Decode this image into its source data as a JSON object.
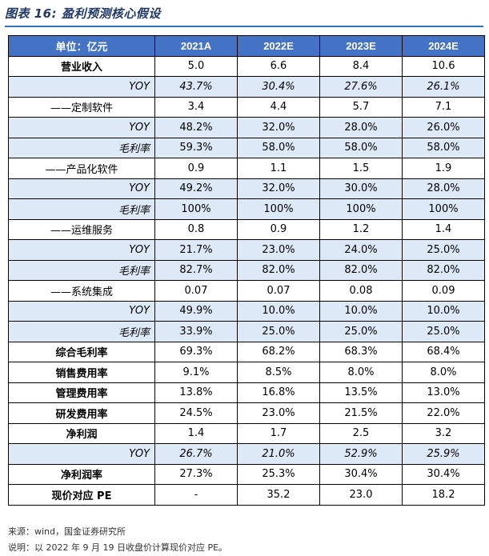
{
  "title": "图表 16: 盈利预测核心假设",
  "table": {
    "header": [
      "单位：亿元",
      "2021A",
      "2022E",
      "2023E",
      "2024E"
    ],
    "rows": [
      {
        "label": "营业收入",
        "style": "bold",
        "shade": false,
        "italic": false,
        "values": [
          "5.0",
          "6.6",
          "8.4",
          "10.6"
        ]
      },
      {
        "label": "YOY",
        "style": "sub",
        "shade": true,
        "italic": true,
        "values": [
          "43.7%",
          "30.4%",
          "27.6%",
          "26.1%"
        ]
      },
      {
        "label": "——定制软件",
        "style": "ind",
        "shade": false,
        "italic": false,
        "values": [
          "3.4",
          "4.4",
          "5.7",
          "7.1"
        ]
      },
      {
        "label": "YOY",
        "style": "sub",
        "shade": true,
        "italic": false,
        "values": [
          "48.2%",
          "32.0%",
          "28.0%",
          "26.0%"
        ]
      },
      {
        "label": "毛利率",
        "style": "sub",
        "shade": true,
        "italic": false,
        "values": [
          "59.3%",
          "58.0%",
          "58.0%",
          "58.0%"
        ]
      },
      {
        "label": "——产品化软件",
        "style": "ind",
        "shade": false,
        "italic": false,
        "values": [
          "0.9",
          "1.1",
          "1.5",
          "1.9"
        ]
      },
      {
        "label": "YOY",
        "style": "sub",
        "shade": true,
        "italic": false,
        "values": [
          "49.2%",
          "32.0%",
          "30.0%",
          "28.0%"
        ]
      },
      {
        "label": "毛利率",
        "style": "sub",
        "shade": true,
        "italic": false,
        "values": [
          "100%",
          "100%",
          "100%",
          "100%"
        ]
      },
      {
        "label": "——运维服务",
        "style": "ind",
        "shade": false,
        "italic": false,
        "values": [
          "0.8",
          "0.9",
          "1.2",
          "1.4"
        ]
      },
      {
        "label": "YOY",
        "style": "sub",
        "shade": true,
        "italic": false,
        "values": [
          "21.7%",
          "23.0%",
          "24.0%",
          "25.0%"
        ]
      },
      {
        "label": "毛利率",
        "style": "sub",
        "shade": true,
        "italic": false,
        "values": [
          "82.7%",
          "82.0%",
          "82.0%",
          "82.0%"
        ]
      },
      {
        "label": "——系统集成",
        "style": "ind",
        "shade": false,
        "italic": false,
        "values": [
          "0.07",
          "0.07",
          "0.08",
          "0.09"
        ]
      },
      {
        "label": "YOY",
        "style": "sub",
        "shade": true,
        "italic": false,
        "values": [
          "49.9%",
          "10.0%",
          "10.0%",
          "10.0%"
        ]
      },
      {
        "label": "毛利率",
        "style": "sub",
        "shade": true,
        "italic": false,
        "values": [
          "33.9%",
          "25.0%",
          "25.0%",
          "25.0%"
        ]
      },
      {
        "label": "综合毛利率",
        "style": "bold",
        "shade": false,
        "italic": false,
        "values": [
          "69.3%",
          "68.2%",
          "68.3%",
          "68.4%"
        ]
      },
      {
        "label": "销售费用率",
        "style": "bold",
        "shade": false,
        "italic": false,
        "values": [
          "9.1%",
          "8.5%",
          "8.0%",
          "8.0%"
        ]
      },
      {
        "label": "管理费用率",
        "style": "bold",
        "shade": false,
        "italic": false,
        "values": [
          "13.8%",
          "16.8%",
          "13.5%",
          "13.0%"
        ]
      },
      {
        "label": "研发费用率",
        "style": "bold",
        "shade": false,
        "italic": false,
        "values": [
          "24.5%",
          "23.0%",
          "21.5%",
          "22.0%"
        ]
      },
      {
        "label": "净利润",
        "style": "bold",
        "shade": false,
        "italic": false,
        "values": [
          "1.4",
          "1.7",
          "2.5",
          "3.2"
        ]
      },
      {
        "label": "YOY",
        "style": "sub",
        "shade": true,
        "italic": true,
        "values": [
          "26.7%",
          "21.0%",
          "52.9%",
          "25.9%"
        ]
      },
      {
        "label": "净利润率",
        "style": "bold",
        "shade": false,
        "italic": false,
        "values": [
          "27.3%",
          "25.3%",
          "30.4%",
          "30.4%"
        ]
      },
      {
        "label": "现价对应 PE",
        "style": "bold",
        "shade": false,
        "italic": false,
        "values": [
          "-",
          "35.2",
          "23.0",
          "18.2"
        ]
      }
    ]
  },
  "source": "来源：wind，国金证券研究所",
  "note": "说明：以 2022 年 9 月 19 日收盘价计算现价对应 PE。",
  "colors": {
    "header_bg": "#4472c4",
    "shade_bg": "#dde9f7",
    "title": "#1f3864"
  }
}
